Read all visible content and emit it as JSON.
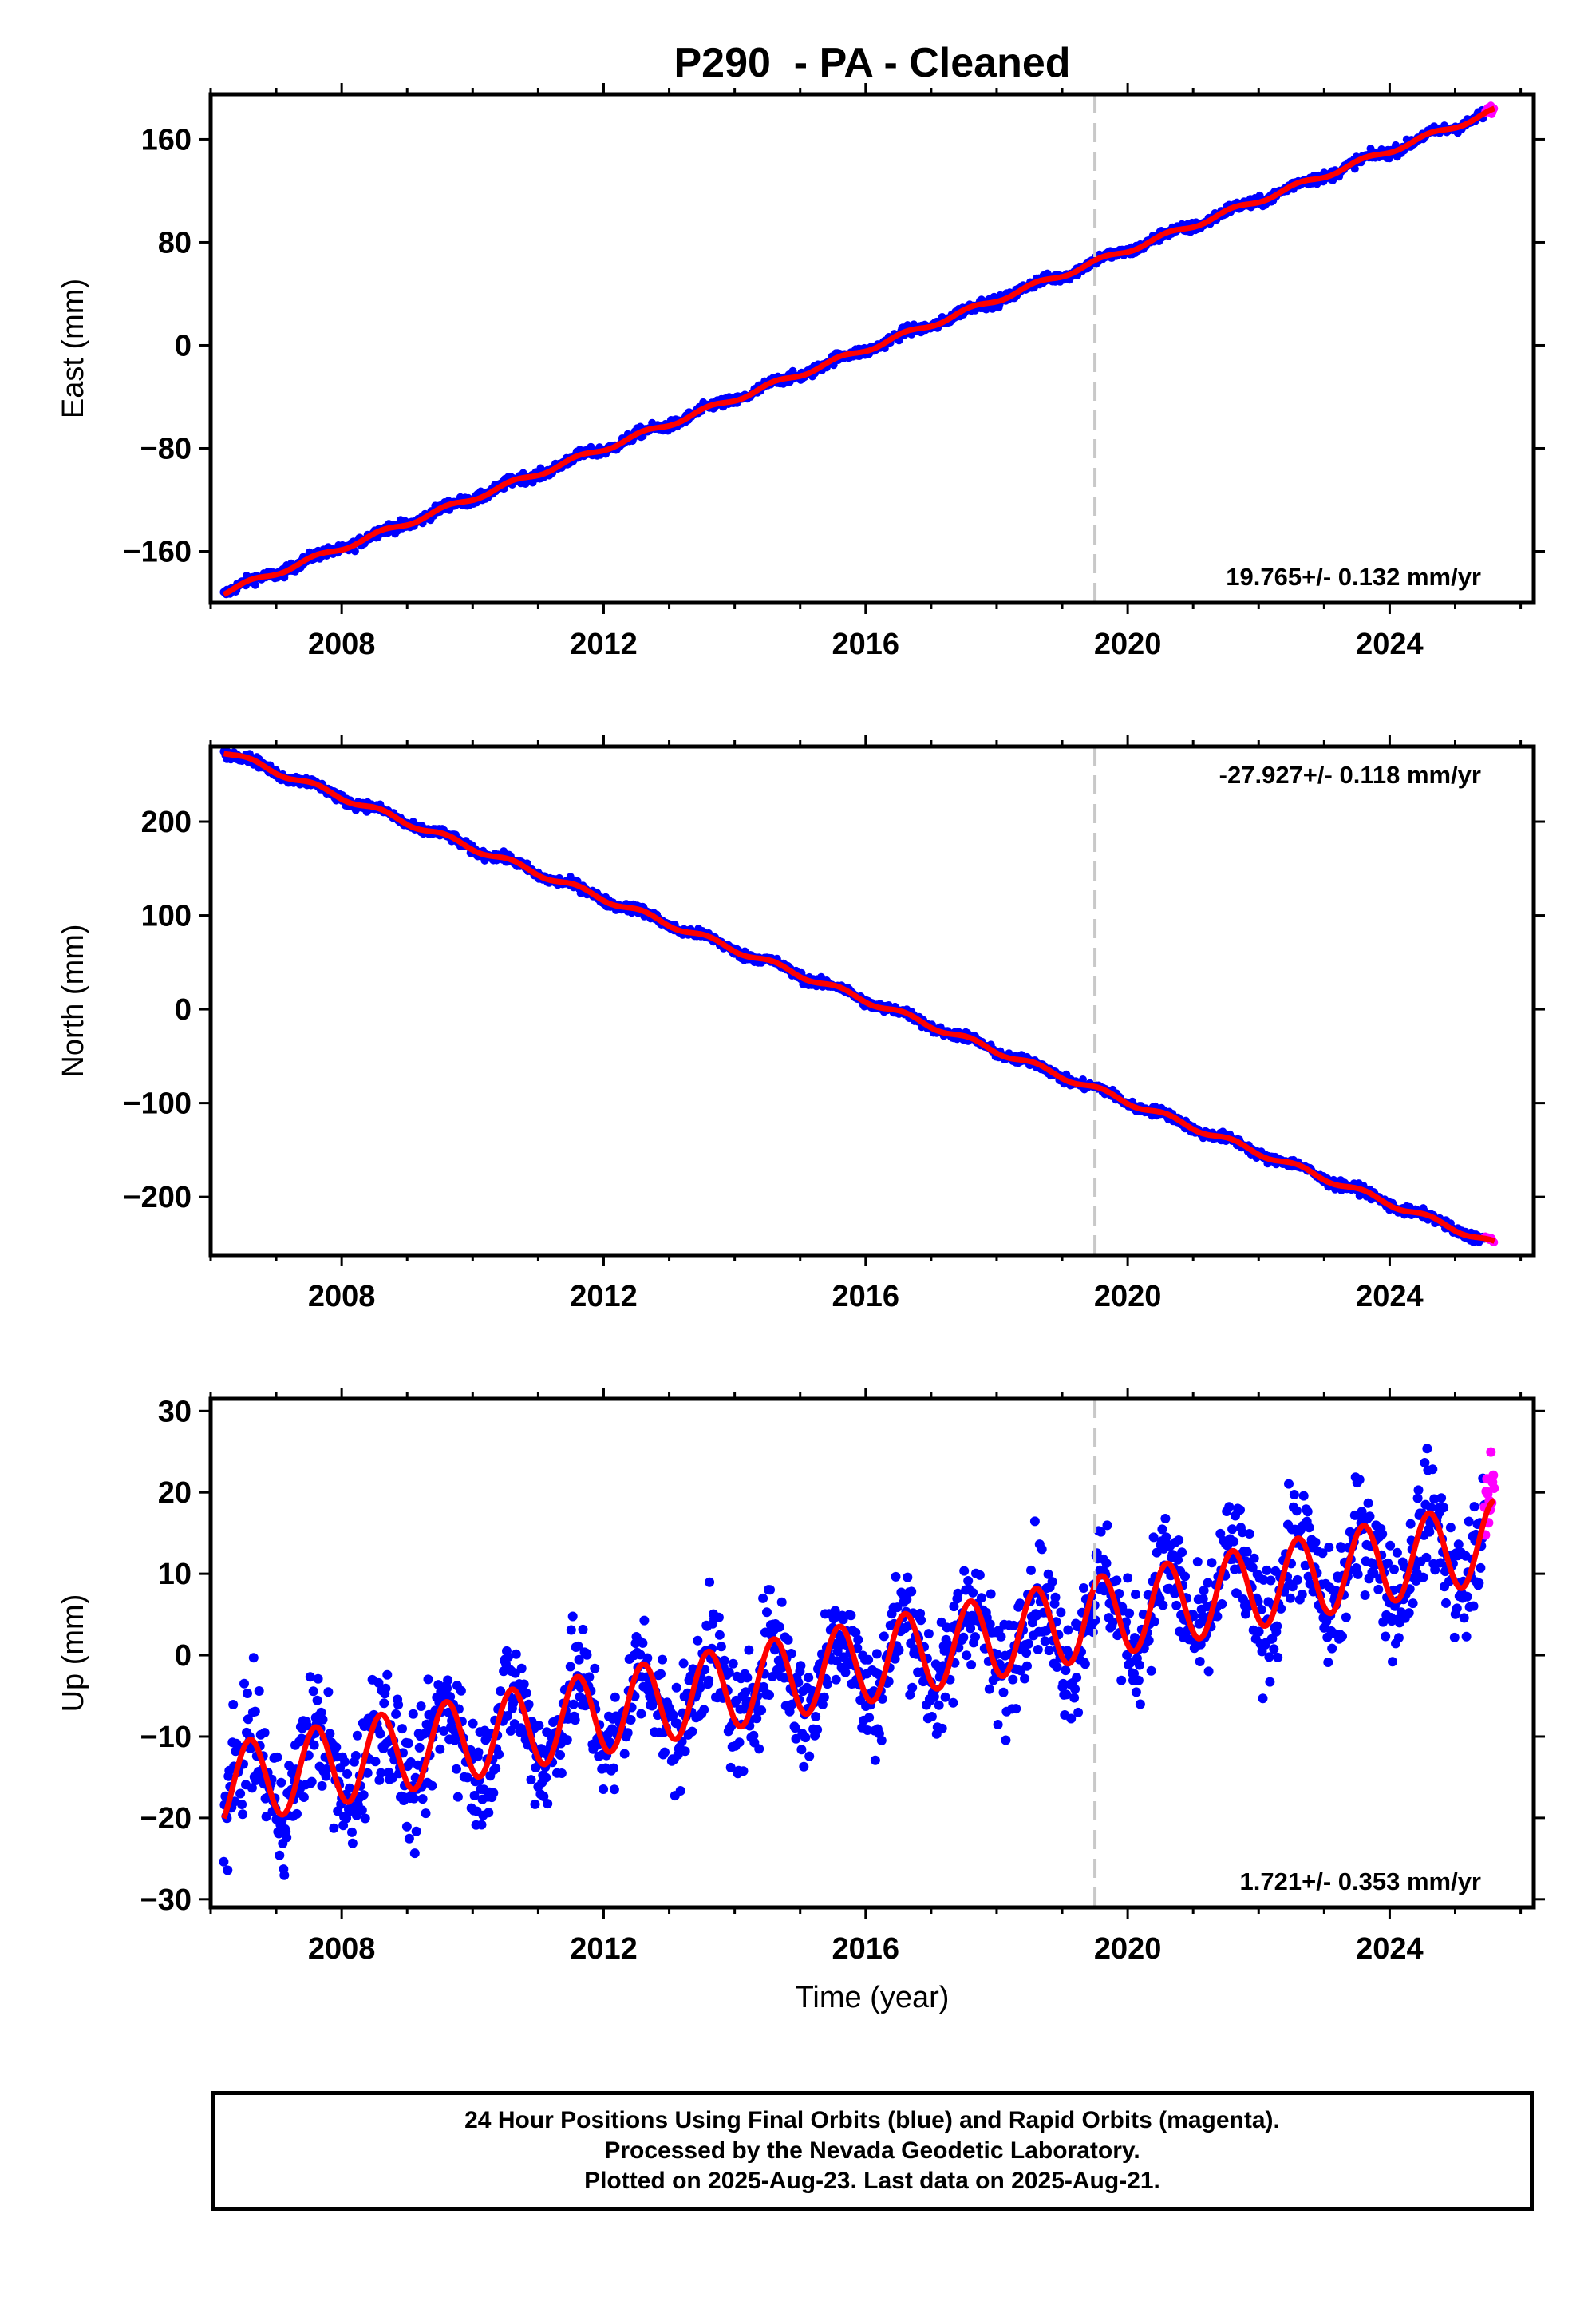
{
  "title": "P290  - PA - Cleaned",
  "xlabel": "Time (year)",
  "colors": {
    "final_orbits": "#0000ff",
    "rapid_orbits": "#ff00ff",
    "model_fit": "#ff0000",
    "event_line": "#c8c8c8"
  },
  "chart_data": [
    {
      "type": "scatter",
      "component": "East",
      "ylabel": "East (mm)",
      "xlim": [
        2006.0,
        2026.2
      ],
      "ylim": [
        -200,
        195
      ],
      "xticks": [
        2008,
        2012,
        2016,
        2020,
        2024
      ],
      "yticks": [
        -160,
        -80,
        0,
        80,
        160
      ],
      "vline_x": 2019.5,
      "rate_label": "19.765+/- 0.132 mm/yr",
      "rate_position": "bottom-right",
      "trend": {
        "t0": 2006.2,
        "v0": -192,
        "t1": 2025.6,
        "v1": 182
      },
      "annual_amplitude": 2,
      "noise": 2,
      "rapid_x_start": 2025.45,
      "grid": false
    },
    {
      "type": "scatter",
      "component": "North",
      "ylabel": "North (mm)",
      "xlim": [
        2006.0,
        2026.2
      ],
      "ylim": [
        -262,
        280
      ],
      "xticks": [
        2008,
        2012,
        2016,
        2020,
        2024
      ],
      "yticks": [
        -200,
        -100,
        0,
        100,
        200
      ],
      "vline_x": 2019.5,
      "rate_label": "-27.927+/- 0.118 mm/yr",
      "rate_position": "top-right",
      "trend": {
        "t0": 2006.2,
        "v0": 275,
        "t1": 2025.6,
        "v1": -250
      },
      "annual_amplitude": 3,
      "noise": 2.5,
      "rapid_x_start": 2025.45,
      "grid": false
    },
    {
      "type": "scatter",
      "component": "Up",
      "ylabel": "Up (mm)",
      "xlim": [
        2006.0,
        2026.2
      ],
      "ylim": [
        -31,
        31.5
      ],
      "xticks": [
        2008,
        2012,
        2016,
        2020,
        2024
      ],
      "yticks": [
        -30,
        -20,
        -10,
        0,
        10,
        20,
        30
      ],
      "vline_x": 2019.5,
      "rate_label": "1.721+/- 0.353 mm/yr",
      "rate_position": "bottom-right",
      "trend": {
        "t0": 2006.2,
        "v0": -16,
        "t1": 2025.6,
        "v1": 14
      },
      "annual_amplitude": 5,
      "noise": 3.5,
      "rapid_x_start": 2025.45,
      "grid": false
    }
  ],
  "footer": {
    "line1": "24 Hour Positions Using Final Orbits (blue) and Rapid Orbits (magenta).",
    "line2": "Processed by the Nevada Geodetic Laboratory.",
    "line3": "Plotted on 2025-Aug-23. Last data on 2025-Aug-21."
  }
}
